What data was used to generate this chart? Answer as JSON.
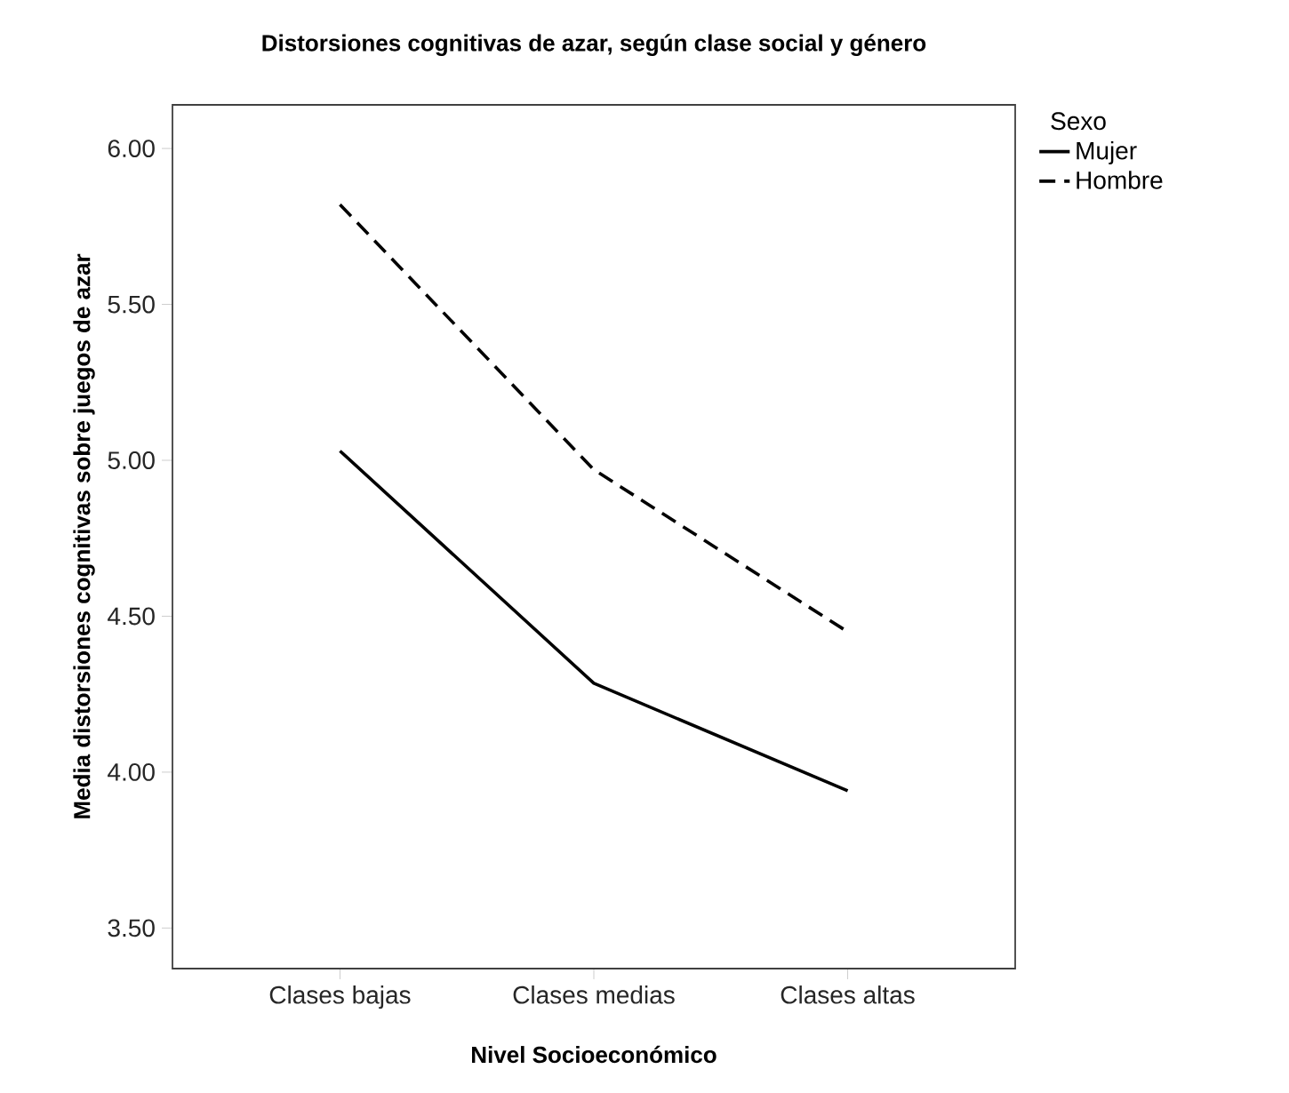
{
  "chart_data": {
    "type": "line",
    "title": "**Distorsiones cognitivas de azar, según clase social y género**",
    "xlabel": "**Nivel Socioeconómico**",
    "ylabel": "**Media distorsiones cognitivas sobre juegos de azar**",
    "legend_title": "Sexo",
    "categories": [
      "Clases bajas",
      "Clases medias",
      "Clases altas"
    ],
    "series": [
      {
        "name": "Mujer",
        "color": "#000000",
        "line_style": "solid",
        "values": [
          5.03,
          4.285,
          3.94
        ]
      },
      {
        "name": "Hombre",
        "color": "#000000",
        "line_style": "dashed",
        "values": [
          5.82,
          4.97,
          4.45
        ]
      }
    ],
    "ylim": [
      3.37,
      6.14
    ],
    "yticks": [
      {
        "value": 3.5,
        "label": "3.50"
      },
      {
        "value": 4.0,
        "label": "4.00"
      },
      {
        "value": 4.5,
        "label": "4.50"
      },
      {
        "value": 5.0,
        "label": "5.00"
      },
      {
        "value": 5.5,
        "label": "5.50"
      },
      {
        "value": 6.0,
        "label": "6.00"
      }
    ],
    "grid": false,
    "legend": "top right",
    "marker": "none"
  }
}
